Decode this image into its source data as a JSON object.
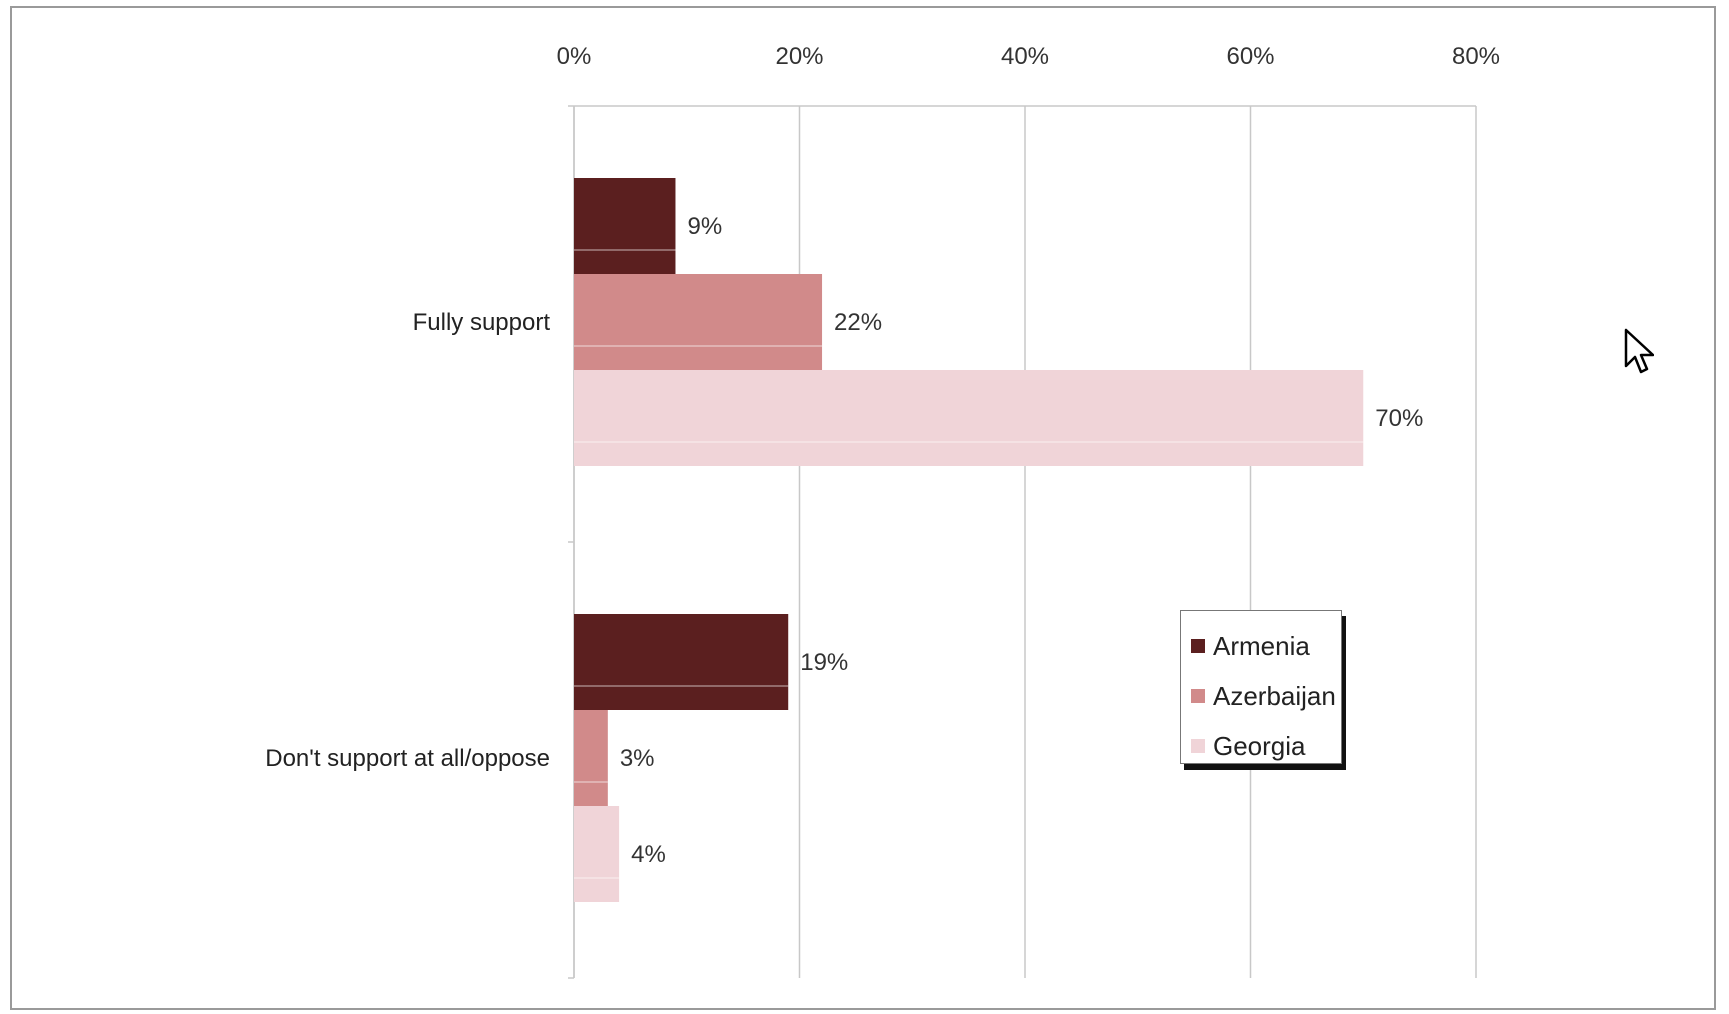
{
  "chart_data": {
    "type": "bar",
    "orientation": "horizontal",
    "title": "",
    "xlabel": "",
    "ylabel": "",
    "xlim": [
      0,
      80
    ],
    "x_ticks": [
      "0%",
      "20%",
      "40%",
      "60%",
      "80%"
    ],
    "x_tick_values": [
      0,
      20,
      40,
      60,
      80
    ],
    "x_axis_position": "top",
    "grid": true,
    "legend_position": "right-center",
    "categories": [
      "Fully support",
      "Don't support at all/oppose"
    ],
    "series": [
      {
        "name": "Armenia",
        "color": "#5b1f1f",
        "values": [
          9,
          19
        ],
        "labels": [
          "9%",
          "19%"
        ]
      },
      {
        "name": "Azerbaijan",
        "color": "#d18a8a",
        "values": [
          22,
          3
        ],
        "labels": [
          "22%",
          "3%"
        ]
      },
      {
        "name": "Georgia",
        "color": "#f0d4d8",
        "values": [
          70,
          4
        ],
        "labels": [
          "70%",
          "4%"
        ]
      }
    ]
  },
  "legend": {
    "items": [
      {
        "label": "Armenia",
        "color": "#5b1f1f"
      },
      {
        "label": "Azerbaijan",
        "color": "#d18a8a"
      },
      {
        "label": "Georgia",
        "color": "#f0d4d8"
      }
    ]
  },
  "cursor_icon": "mouse-pointer-icon"
}
